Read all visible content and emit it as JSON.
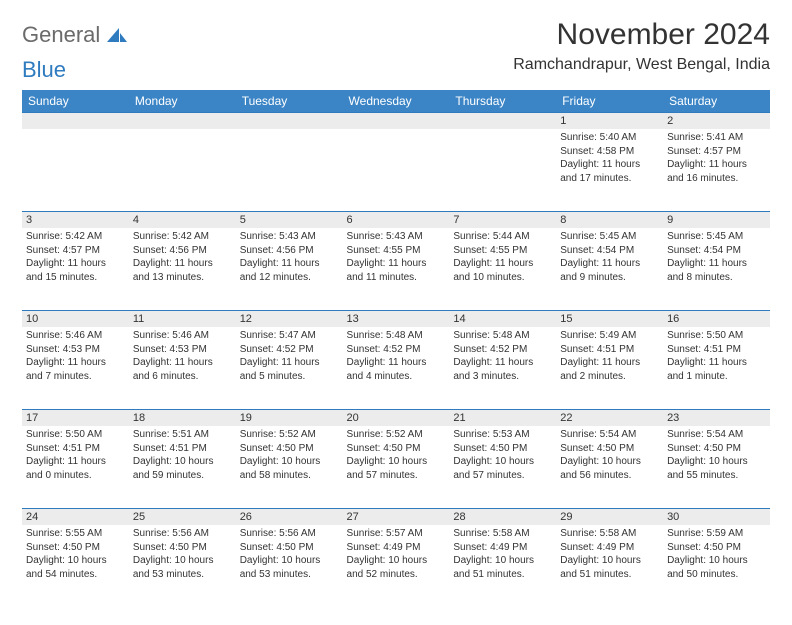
{
  "logo": {
    "line1": "General",
    "line2": "Blue"
  },
  "title": "November 2024",
  "location": "Ramchandrapur, West Bengal, India",
  "colors": {
    "header_bg": "#3b85c6",
    "header_text": "#ffffff",
    "daynum_bg": "#ececec",
    "border_top": "#2f7bbf",
    "logo_gray": "#6b6b6b",
    "logo_blue": "#2f7bbf"
  },
  "weekdays": [
    "Sunday",
    "Monday",
    "Tuesday",
    "Wednesday",
    "Thursday",
    "Friday",
    "Saturday"
  ],
  "weeks": [
    [
      null,
      null,
      null,
      null,
      null,
      {
        "n": "1",
        "sunrise": "Sunrise: 5:40 AM",
        "sunset": "Sunset: 4:58 PM",
        "d1": "Daylight: 11 hours",
        "d2": "and 17 minutes."
      },
      {
        "n": "2",
        "sunrise": "Sunrise: 5:41 AM",
        "sunset": "Sunset: 4:57 PM",
        "d1": "Daylight: 11 hours",
        "d2": "and 16 minutes."
      }
    ],
    [
      {
        "n": "3",
        "sunrise": "Sunrise: 5:42 AM",
        "sunset": "Sunset: 4:57 PM",
        "d1": "Daylight: 11 hours",
        "d2": "and 15 minutes."
      },
      {
        "n": "4",
        "sunrise": "Sunrise: 5:42 AM",
        "sunset": "Sunset: 4:56 PM",
        "d1": "Daylight: 11 hours",
        "d2": "and 13 minutes."
      },
      {
        "n": "5",
        "sunrise": "Sunrise: 5:43 AM",
        "sunset": "Sunset: 4:56 PM",
        "d1": "Daylight: 11 hours",
        "d2": "and 12 minutes."
      },
      {
        "n": "6",
        "sunrise": "Sunrise: 5:43 AM",
        "sunset": "Sunset: 4:55 PM",
        "d1": "Daylight: 11 hours",
        "d2": "and 11 minutes."
      },
      {
        "n": "7",
        "sunrise": "Sunrise: 5:44 AM",
        "sunset": "Sunset: 4:55 PM",
        "d1": "Daylight: 11 hours",
        "d2": "and 10 minutes."
      },
      {
        "n": "8",
        "sunrise": "Sunrise: 5:45 AM",
        "sunset": "Sunset: 4:54 PM",
        "d1": "Daylight: 11 hours",
        "d2": "and 9 minutes."
      },
      {
        "n": "9",
        "sunrise": "Sunrise: 5:45 AM",
        "sunset": "Sunset: 4:54 PM",
        "d1": "Daylight: 11 hours",
        "d2": "and 8 minutes."
      }
    ],
    [
      {
        "n": "10",
        "sunrise": "Sunrise: 5:46 AM",
        "sunset": "Sunset: 4:53 PM",
        "d1": "Daylight: 11 hours",
        "d2": "and 7 minutes."
      },
      {
        "n": "11",
        "sunrise": "Sunrise: 5:46 AM",
        "sunset": "Sunset: 4:53 PM",
        "d1": "Daylight: 11 hours",
        "d2": "and 6 minutes."
      },
      {
        "n": "12",
        "sunrise": "Sunrise: 5:47 AM",
        "sunset": "Sunset: 4:52 PM",
        "d1": "Daylight: 11 hours",
        "d2": "and 5 minutes."
      },
      {
        "n": "13",
        "sunrise": "Sunrise: 5:48 AM",
        "sunset": "Sunset: 4:52 PM",
        "d1": "Daylight: 11 hours",
        "d2": "and 4 minutes."
      },
      {
        "n": "14",
        "sunrise": "Sunrise: 5:48 AM",
        "sunset": "Sunset: 4:52 PM",
        "d1": "Daylight: 11 hours",
        "d2": "and 3 minutes."
      },
      {
        "n": "15",
        "sunrise": "Sunrise: 5:49 AM",
        "sunset": "Sunset: 4:51 PM",
        "d1": "Daylight: 11 hours",
        "d2": "and 2 minutes."
      },
      {
        "n": "16",
        "sunrise": "Sunrise: 5:50 AM",
        "sunset": "Sunset: 4:51 PM",
        "d1": "Daylight: 11 hours",
        "d2": "and 1 minute."
      }
    ],
    [
      {
        "n": "17",
        "sunrise": "Sunrise: 5:50 AM",
        "sunset": "Sunset: 4:51 PM",
        "d1": "Daylight: 11 hours",
        "d2": "and 0 minutes."
      },
      {
        "n": "18",
        "sunrise": "Sunrise: 5:51 AM",
        "sunset": "Sunset: 4:51 PM",
        "d1": "Daylight: 10 hours",
        "d2": "and 59 minutes."
      },
      {
        "n": "19",
        "sunrise": "Sunrise: 5:52 AM",
        "sunset": "Sunset: 4:50 PM",
        "d1": "Daylight: 10 hours",
        "d2": "and 58 minutes."
      },
      {
        "n": "20",
        "sunrise": "Sunrise: 5:52 AM",
        "sunset": "Sunset: 4:50 PM",
        "d1": "Daylight: 10 hours",
        "d2": "and 57 minutes."
      },
      {
        "n": "21",
        "sunrise": "Sunrise: 5:53 AM",
        "sunset": "Sunset: 4:50 PM",
        "d1": "Daylight: 10 hours",
        "d2": "and 57 minutes."
      },
      {
        "n": "22",
        "sunrise": "Sunrise: 5:54 AM",
        "sunset": "Sunset: 4:50 PM",
        "d1": "Daylight: 10 hours",
        "d2": "and 56 minutes."
      },
      {
        "n": "23",
        "sunrise": "Sunrise: 5:54 AM",
        "sunset": "Sunset: 4:50 PM",
        "d1": "Daylight: 10 hours",
        "d2": "and 55 minutes."
      }
    ],
    [
      {
        "n": "24",
        "sunrise": "Sunrise: 5:55 AM",
        "sunset": "Sunset: 4:50 PM",
        "d1": "Daylight: 10 hours",
        "d2": "and 54 minutes."
      },
      {
        "n": "25",
        "sunrise": "Sunrise: 5:56 AM",
        "sunset": "Sunset: 4:50 PM",
        "d1": "Daylight: 10 hours",
        "d2": "and 53 minutes."
      },
      {
        "n": "26",
        "sunrise": "Sunrise: 5:56 AM",
        "sunset": "Sunset: 4:50 PM",
        "d1": "Daylight: 10 hours",
        "d2": "and 53 minutes."
      },
      {
        "n": "27",
        "sunrise": "Sunrise: 5:57 AM",
        "sunset": "Sunset: 4:49 PM",
        "d1": "Daylight: 10 hours",
        "d2": "and 52 minutes."
      },
      {
        "n": "28",
        "sunrise": "Sunrise: 5:58 AM",
        "sunset": "Sunset: 4:49 PM",
        "d1": "Daylight: 10 hours",
        "d2": "and 51 minutes."
      },
      {
        "n": "29",
        "sunrise": "Sunrise: 5:58 AM",
        "sunset": "Sunset: 4:49 PM",
        "d1": "Daylight: 10 hours",
        "d2": "and 51 minutes."
      },
      {
        "n": "30",
        "sunrise": "Sunrise: 5:59 AM",
        "sunset": "Sunset: 4:50 PM",
        "d1": "Daylight: 10 hours",
        "d2": "and 50 minutes."
      }
    ]
  ]
}
